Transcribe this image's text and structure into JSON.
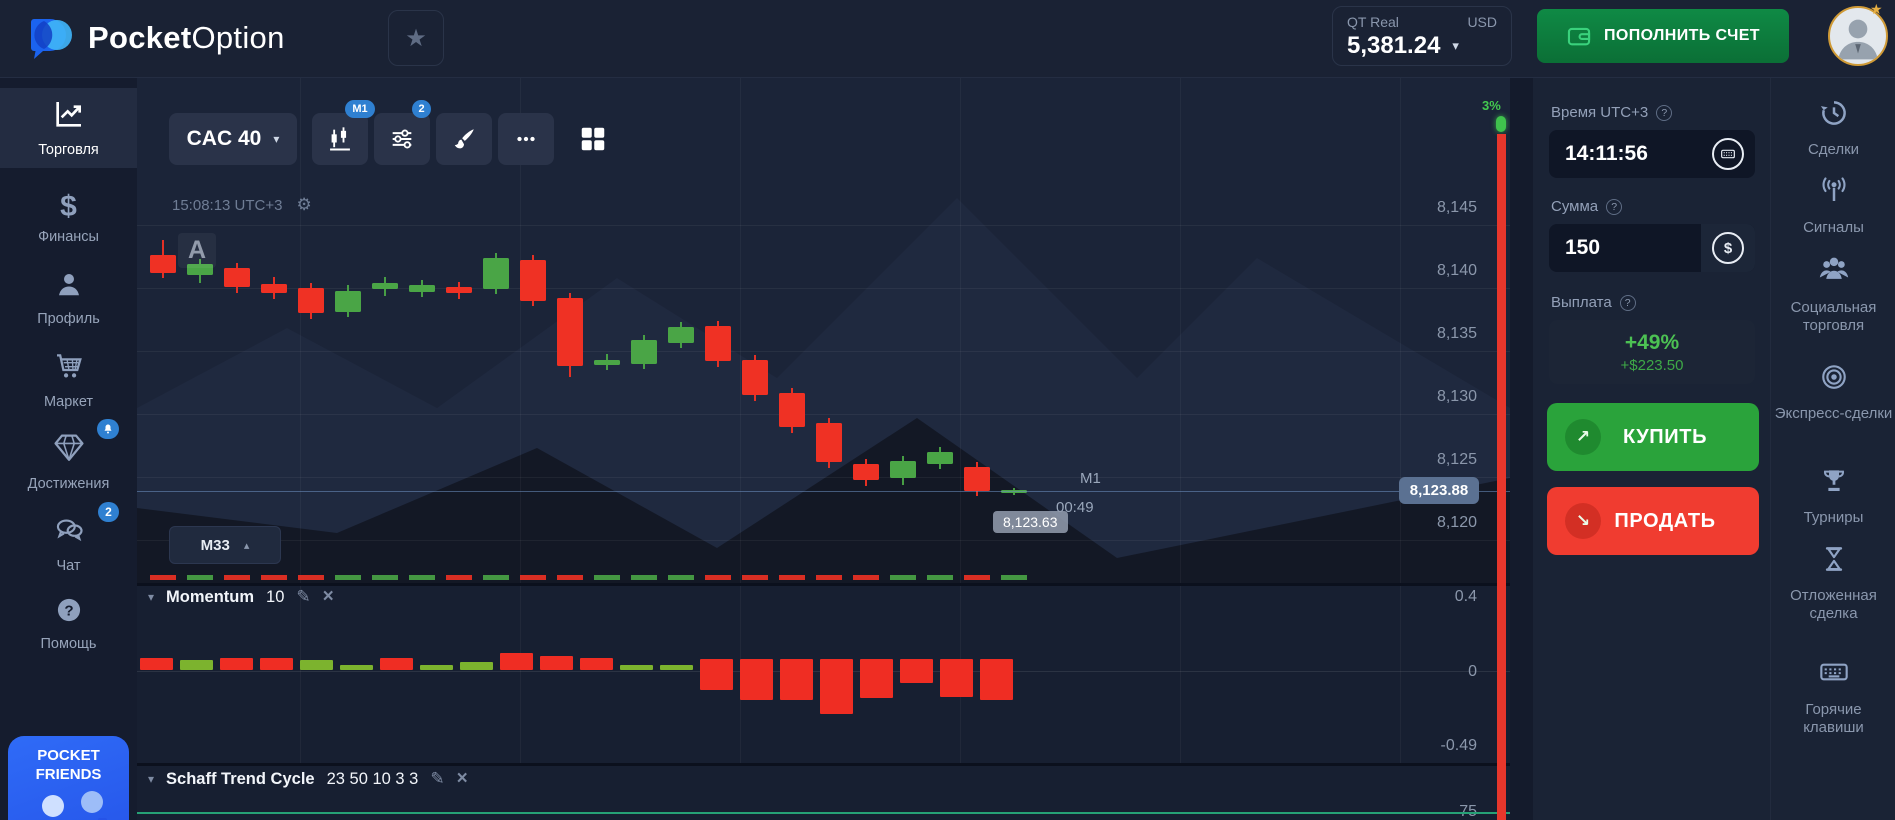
{
  "icons": {
    "star": "★",
    "caret_down": "▾",
    "caret_up": "▴",
    "gear": "⚙",
    "pencil": "✎",
    "close": "×",
    "arrow_buy": "↗",
    "arrow_sell": "↘",
    "question": "?",
    "dollar": "$"
  },
  "header": {
    "brand_bold": "Pocket",
    "brand_light": "Option",
    "account_type": "QT Real",
    "account_currency": "USD",
    "balance": "5,381.24",
    "deposit_label": "ПОПОЛНИТЬ СЧЕТ"
  },
  "sidebar": {
    "items": [
      {
        "label": "Торговля",
        "icon": "trade",
        "active": true
      },
      {
        "label": "Финансы",
        "icon": "finance"
      },
      {
        "label": "Профиль",
        "icon": "profile"
      },
      {
        "label": "Маркет",
        "icon": "market"
      },
      {
        "label": "Достижения",
        "icon": "achievements",
        "badge": "bell"
      },
      {
        "label": "Чат",
        "icon": "chat",
        "badge": "2"
      },
      {
        "label": "Помощь",
        "icon": "help"
      }
    ],
    "banner_line1": "POCKET",
    "banner_line2": "FRIENDS"
  },
  "toolbar": {
    "asset": "CAC 40",
    "chart_type_badge": "M1",
    "indicators_badge": "2"
  },
  "chart": {
    "clock": "15:08:13 UTC+3",
    "watermark": "A",
    "axis_ticks": [
      "8,145",
      "8,140",
      "8,135",
      "8,130",
      "8,125",
      "8,120"
    ],
    "current_price": "8,123.88",
    "last_quote": "8,123.63",
    "countdown": "00:49",
    "timeframe": "M1",
    "gauge_percent": "3%",
    "pane_button": "M33"
  },
  "momentum_panel": {
    "title": "Momentum",
    "params": "10",
    "ticks": [
      "0.4",
      "0",
      "-0.49"
    ]
  },
  "stc_panel": {
    "title": "Schaff Trend Cycle",
    "params": "23 50 10 3 3",
    "ticks": [
      "75"
    ]
  },
  "trade_panel": {
    "time_label": "Время UTC+3",
    "time_value": "14:11:56",
    "amount_label": "Сумма",
    "amount_value": "150",
    "payout_label": "Выплата",
    "payout_percent": "+49%",
    "payout_amount": "+$223.50",
    "buy_label": "КУПИТЬ",
    "sell_label": "ПРОДАТЬ"
  },
  "right_sidebar": {
    "items": [
      {
        "label": "Сделки",
        "icon": "history"
      },
      {
        "label": "Сигналы",
        "icon": "signals"
      },
      {
        "label": "Социальная торговля",
        "icon": "social"
      },
      {
        "label": "Экспресс-сделки",
        "icon": "express"
      },
      {
        "label": "Турниры",
        "icon": "tournaments"
      },
      {
        "label": "Отложенная сделка",
        "icon": "pending"
      },
      {
        "label": "Горячие клавиши",
        "icon": "hotkeys"
      }
    ]
  },
  "chart_data": {
    "type": "candlestick",
    "symbol": "CAC 40",
    "timeframe": "M1",
    "y_axis": {
      "min": 8118,
      "max": 8147,
      "ticks": [
        8145,
        8140,
        8135,
        8130,
        8125,
        8120
      ]
    },
    "current_price": 8123.88,
    "last_quote": 8123.63,
    "candles": [
      {
        "o": 8142.6,
        "h": 8143.8,
        "l": 8140.8,
        "c": 8141.2
      },
      {
        "o": 8141.0,
        "h": 8142.3,
        "l": 8140.4,
        "c": 8141.9
      },
      {
        "o": 8141.6,
        "h": 8142.0,
        "l": 8139.6,
        "c": 8140.1
      },
      {
        "o": 8140.3,
        "h": 8140.9,
        "l": 8139.1,
        "c": 8139.6
      },
      {
        "o": 8140.0,
        "h": 8140.4,
        "l": 8137.5,
        "c": 8138.0
      },
      {
        "o": 8138.1,
        "h": 8140.2,
        "l": 8137.7,
        "c": 8139.8
      },
      {
        "o": 8139.9,
        "h": 8140.9,
        "l": 8139.4,
        "c": 8140.4
      },
      {
        "o": 8139.7,
        "h": 8140.6,
        "l": 8139.3,
        "c": 8140.2
      },
      {
        "o": 8140.1,
        "h": 8140.5,
        "l": 8139.1,
        "c": 8139.6
      },
      {
        "o": 8139.9,
        "h": 8142.8,
        "l": 8139.5,
        "c": 8142.4
      },
      {
        "o": 8142.2,
        "h": 8142.6,
        "l": 8138.6,
        "c": 8139.0
      },
      {
        "o": 8139.2,
        "h": 8139.6,
        "l": 8132.9,
        "c": 8133.8
      },
      {
        "o": 8133.9,
        "h": 8134.8,
        "l": 8133.5,
        "c": 8134.3
      },
      {
        "o": 8134.0,
        "h": 8136.3,
        "l": 8133.6,
        "c": 8135.9
      },
      {
        "o": 8135.6,
        "h": 8137.3,
        "l": 8135.2,
        "c": 8136.9
      },
      {
        "o": 8137.0,
        "h": 8137.4,
        "l": 8133.7,
        "c": 8134.2
      },
      {
        "o": 8134.3,
        "h": 8134.7,
        "l": 8131.0,
        "c": 8131.5
      },
      {
        "o": 8131.7,
        "h": 8132.1,
        "l": 8128.5,
        "c": 8129.0
      },
      {
        "o": 8129.3,
        "h": 8129.7,
        "l": 8125.7,
        "c": 8126.2
      },
      {
        "o": 8126.0,
        "h": 8126.4,
        "l": 8124.3,
        "c": 8124.8
      },
      {
        "o": 8124.9,
        "h": 8126.7,
        "l": 8124.4,
        "c": 8126.3
      },
      {
        "o": 8126.0,
        "h": 8127.4,
        "l": 8125.6,
        "c": 8127.0
      },
      {
        "o": 8125.8,
        "h": 8126.2,
        "l": 8123.5,
        "c": 8123.88
      },
      {
        "o": 8123.8,
        "h": 8124.1,
        "l": 8123.6,
        "c": 8124.0
      }
    ],
    "momentum": {
      "type": "histogram",
      "period": 10,
      "range": [
        -0.49,
        0.4
      ],
      "bars": [
        {
          "v": 0.07,
          "c": "r"
        },
        {
          "v": 0.06,
          "c": "g"
        },
        {
          "v": 0.07,
          "c": "r"
        },
        {
          "v": 0.07,
          "c": "r"
        },
        {
          "v": 0.06,
          "c": "g"
        },
        {
          "v": 0.03,
          "c": "g"
        },
        {
          "v": 0.07,
          "c": "r"
        },
        {
          "v": 0.03,
          "c": "g"
        },
        {
          "v": 0.05,
          "c": "g"
        },
        {
          "v": 0.1,
          "c": "r"
        },
        {
          "v": 0.08,
          "c": "r"
        },
        {
          "v": 0.07,
          "c": "r"
        },
        {
          "v": 0.03,
          "c": "g"
        },
        {
          "v": 0.03,
          "c": "g"
        },
        {
          "v": -0.11,
          "c": "r"
        },
        {
          "v": -0.17,
          "c": "r"
        },
        {
          "v": -0.17,
          "c": "r"
        },
        {
          "v": -0.25,
          "c": "r"
        },
        {
          "v": -0.16,
          "c": "r"
        },
        {
          "v": -0.07,
          "c": "r"
        },
        {
          "v": -0.15,
          "c": "r"
        },
        {
          "v": -0.17,
          "c": "r"
        }
      ]
    },
    "stc": {
      "type": "line",
      "params": "23 50 10 3 3",
      "visible_value": 75
    }
  },
  "colors": {
    "bull": "#4aa546",
    "bear": "#ef3124",
    "momentum_up": "#7cb32e",
    "momentum_down": "#ef2d23",
    "buy": "#2aa33b",
    "sell": "#f03c30",
    "accent_blue": "#2f80d1",
    "payout_green": "#4cc153",
    "deposit_green": "#0d7a3c",
    "stc_line": "#26a176",
    "badge_gold": "#cf9a36"
  }
}
